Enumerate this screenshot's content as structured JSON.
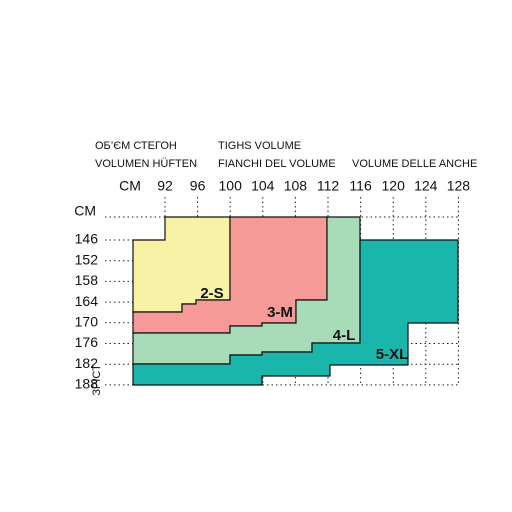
{
  "header": {
    "ua": "ОБ’ЄМ СТЕГОН",
    "de": "VOLUMEN HÜFTEN",
    "en": "TIGHS VOLUME",
    "it": "FIANCHI DEL VOLUME",
    "it2": "VOLUME DELLE ANCHE"
  },
  "x_unit": "CM",
  "x_labels": [
    "92",
    "96",
    "100",
    "104",
    "108",
    "112",
    "116",
    "120",
    "124",
    "128"
  ],
  "y_unit": "CM",
  "y_labels": [
    "146",
    "152",
    "158",
    "164",
    "170",
    "176",
    "182",
    "188"
  ],
  "y_title": "ЗРІСТ",
  "sizes": [
    "2-S",
    "3-M",
    "4-L",
    "5-XL"
  ]
}
